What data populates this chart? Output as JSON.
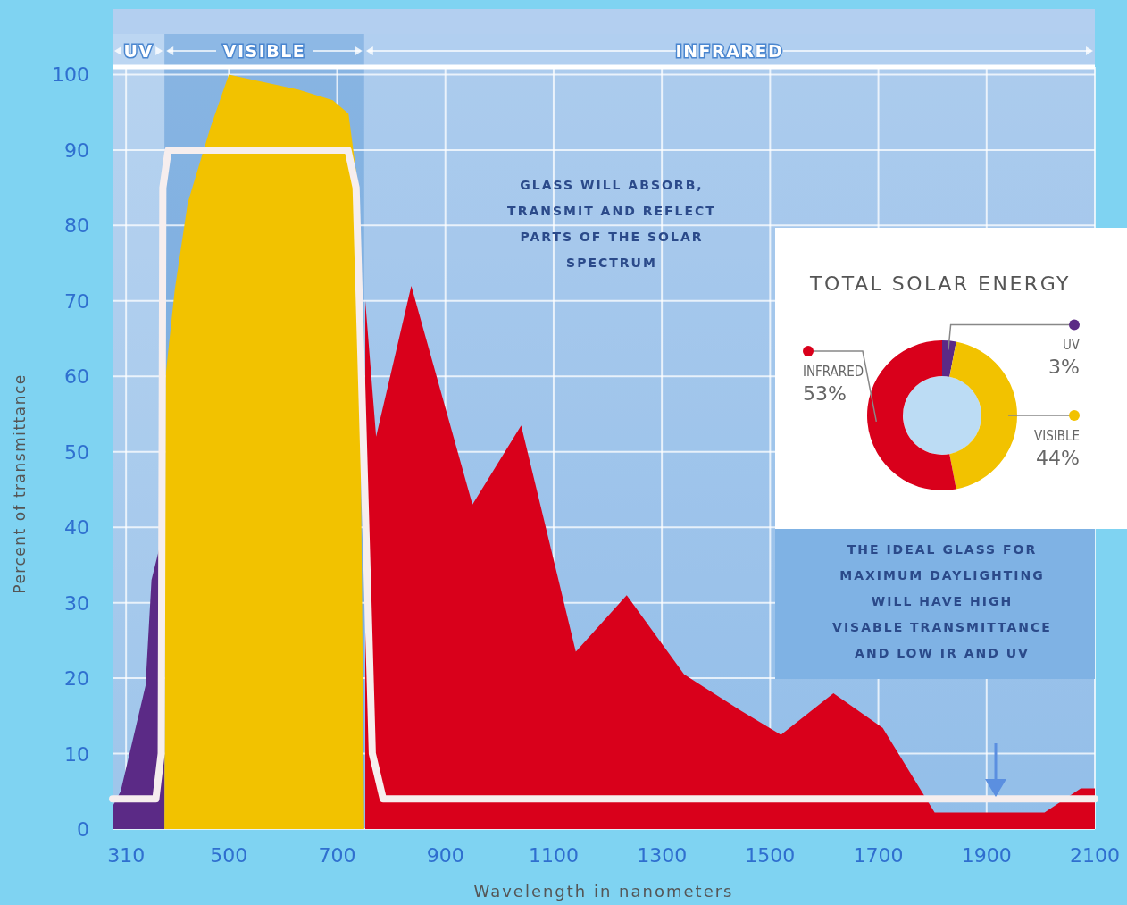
{
  "chart_data": [
    {
      "type": "area",
      "xlabel": "Wavelength in nanometers",
      "ylabel": "Percent of transmittance",
      "xlim": [
        285,
        2100
      ],
      "ylim": [
        0,
        101
      ],
      "xticks": [
        310,
        500,
        700,
        900,
        1100,
        1300,
        1500,
        1700,
        1900,
        2100
      ],
      "yticks": [
        0,
        10,
        20,
        30,
        40,
        50,
        60,
        70,
        80,
        90,
        100
      ],
      "grid": true,
      "series": [
        {
          "type": "area",
          "color": "#d9001b",
          "x": [
            752,
            772,
            837,
            950,
            1040,
            1141,
            1235,
            1341,
            1446,
            1520,
            1617,
            1708,
            1804,
            2007,
            2074,
            2100
          ],
          "values": [
            70,
            52,
            72,
            43,
            53.5,
            23.5,
            31,
            20.5,
            15.7,
            12.5,
            18,
            13.4,
            2.2,
            2.2,
            5.4,
            5.4
          ]
        },
        {
          "type": "area",
          "color": "#5b2a86",
          "x": [
            285,
            300,
            346,
            357,
            381
          ],
          "values": [
            3,
            5,
            19,
            33,
            40
          ]
        },
        {
          "type": "area",
          "color": "#f2c200",
          "x": [
            381,
            383,
            400,
            424,
            466,
            500,
            628,
            692,
            721,
            739,
            750
          ],
          "values": [
            0,
            60,
            71.5,
            83,
            93,
            100,
            98,
            96.6,
            94.8,
            85,
            0
          ]
        },
        {
          "type": "line",
          "color": "#f6eeee",
          "x": [
            285,
            365,
            375,
            378,
            388,
            720,
            735,
            765,
            785,
            2100
          ],
          "values": [
            4,
            4,
            10,
            85,
            90,
            90,
            85,
            10,
            4,
            4
          ]
        }
      ],
      "bands": [
        {
          "axis": "x",
          "from": 285,
          "to": 381,
          "label": "UV",
          "color": "#c8def5"
        },
        {
          "axis": "x",
          "from": 381,
          "to": 750,
          "label": "VISIBLE",
          "color": "#5f9bd8"
        },
        {
          "axis": "x",
          "from": 750,
          "to": 2100,
          "label": "INFRARED",
          "color": "#b0cff0"
        }
      ],
      "annotations": [
        "GLASS WILL ABSORB, TRANSMIT AND REFLECT PARTS OF THE SOLAR SPECTRUM",
        "THE IDEAL GLASS FOR MAXIMUM DAYLIGHTING WILL HAVE HIGH VISABLE TRANSMITTANCE AND LOW IR AND UV"
      ]
    },
    {
      "type": "donut",
      "title": "TOTAL SOLAR ENERGY",
      "categories": [
        "UV",
        "VISIBLE",
        "INFRARED"
      ],
      "values": [
        3,
        44,
        53
      ],
      "colors": [
        "#5b2a86",
        "#f2c200",
        "#d9001b"
      ],
      "value_labels": [
        "3%",
        "44%",
        "53%"
      ],
      "legend": "right"
    }
  ]
}
